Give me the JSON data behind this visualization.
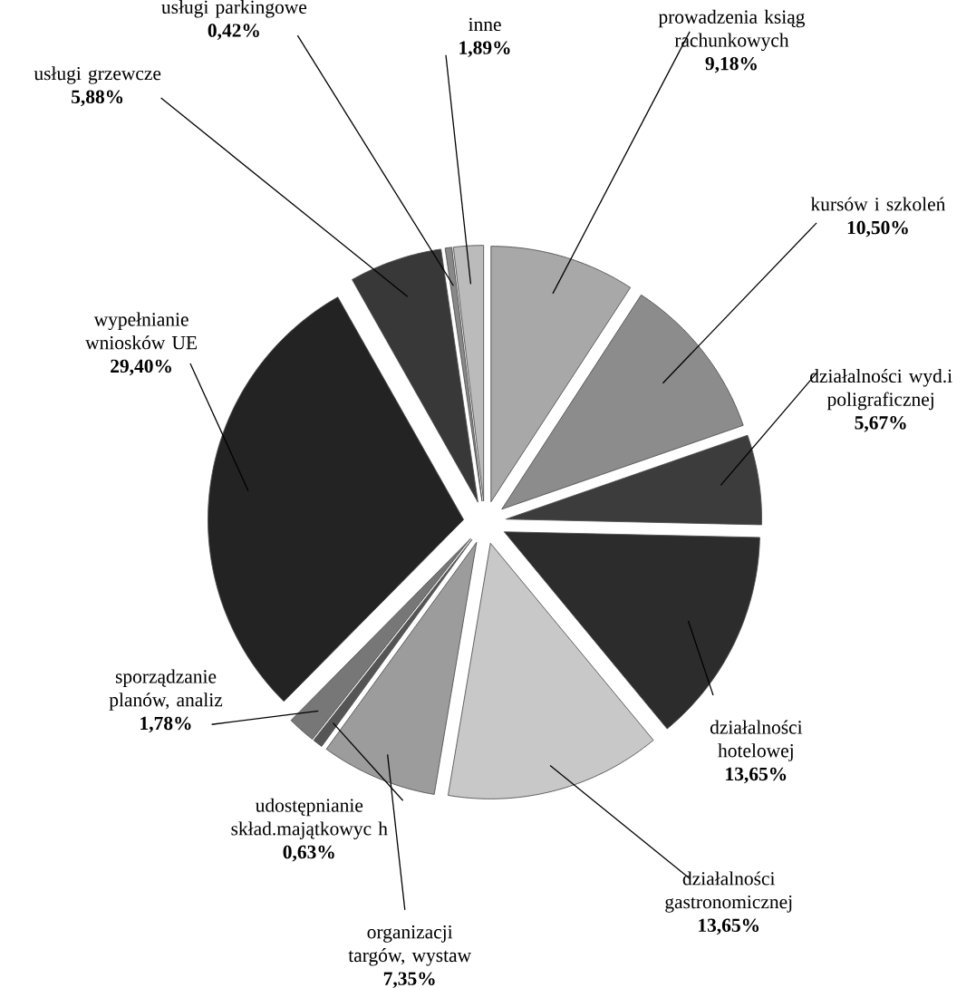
{
  "chart_data": {
    "type": "pie",
    "categories": [
      "prowadzenia ksiąg rachunkowych",
      "kursów i szkoleń",
      "działalności wyd.i poligraficznej",
      "działalności hotelowej",
      "działalności gastronomicznej",
      "organizacji targów, wystaw",
      "udostępnianie skład.majątkowyc h",
      "sporządzanie planów, analiz",
      "wypełnianie wniosków UE",
      "usługi grzewcze",
      "usługi parkingowe",
      "inne"
    ],
    "values": [
      9.18,
      10.5,
      5.67,
      13.65,
      13.65,
      7.35,
      0.63,
      1.78,
      29.4,
      5.88,
      0.42,
      1.89
    ],
    "value_labels": [
      "9,18%",
      "10,50%",
      "5,67%",
      "13,65%",
      "13,65%",
      "7,35%",
      "0,63%",
      "1,78%",
      "29,40%",
      "5,88%",
      "0,42%",
      "1,89%"
    ],
    "colors": [
      "#a8a8a8",
      "#8c8c8c",
      "#3c3c3c",
      "#2c2c2c",
      "#c8c8c8",
      "#9c9c9c",
      "#555555",
      "#777777",
      "#232323",
      "#383838",
      "#888888",
      "#bbbbbb"
    ],
    "legend": false
  }
}
